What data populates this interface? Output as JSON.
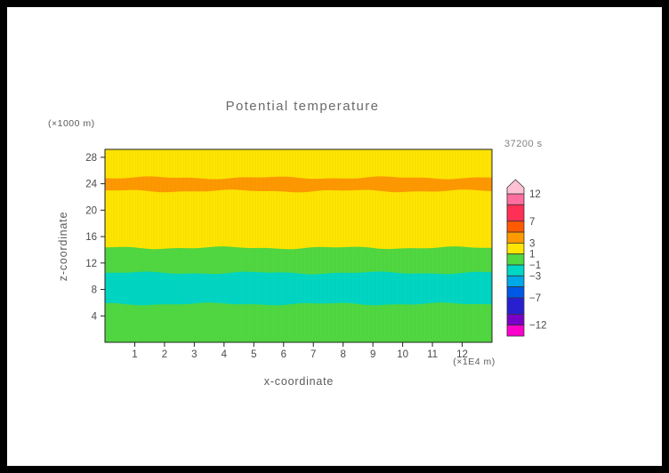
{
  "window": {
    "background": "#000000",
    "page_background": "#ffffff"
  },
  "chart_data": {
    "type": "filled-contour",
    "title": "Potential temperature",
    "time_label": "37200 s",
    "x_axis": {
      "label": "x-coordinate",
      "unit": "(×1E4 m)",
      "range": [
        0,
        13
      ],
      "ticks": [
        1,
        2,
        3,
        4,
        5,
        6,
        7,
        8,
        9,
        10,
        11,
        12
      ]
    },
    "y_axis": {
      "label": "z-coordinate",
      "unit": "(×1000 m)",
      "range": [
        0,
        29.2
      ],
      "ticks": [
        4,
        8,
        12,
        16,
        20,
        24,
        28
      ]
    },
    "bands": [
      {
        "value_min": 1,
        "value_max": 3,
        "z_from": 24.9,
        "z_to": 29.2,
        "color": "#ffe600"
      },
      {
        "value_min": 3,
        "value_max": 5,
        "z_from": 22.9,
        "z_to": 24.9,
        "color": "#ff9900"
      },
      {
        "value_min": 1,
        "value_max": 3,
        "z_from": 14.3,
        "z_to": 22.9,
        "color": "#ffe600"
      },
      {
        "value_min": -1,
        "value_max": 1,
        "z_from": 10.5,
        "z_to": 14.3,
        "color": "#50d940"
      },
      {
        "value_min": -3,
        "value_max": -1,
        "z_from": 5.8,
        "z_to": 10.5,
        "color": "#00d7c4"
      },
      {
        "value_min": -1,
        "value_max": 1,
        "z_from": 0,
        "z_to": 5.8,
        "color": "#50d940"
      }
    ],
    "colorbar": {
      "range": [
        -14,
        12
      ],
      "over_color": "#ffc2d4",
      "segments": [
        {
          "from": 10,
          "to": 12,
          "color": "#ff6e9e"
        },
        {
          "from": 7,
          "to": 10,
          "color": "#ff2f55"
        },
        {
          "from": 5,
          "to": 7,
          "color": "#ff5a00"
        },
        {
          "from": 3,
          "to": 5,
          "color": "#ff9900"
        },
        {
          "from": 1,
          "to": 3,
          "color": "#ffe600"
        },
        {
          "from": -1,
          "to": 1,
          "color": "#50d940"
        },
        {
          "from": -3,
          "to": -1,
          "color": "#00d7c4"
        },
        {
          "from": -5,
          "to": -3,
          "color": "#00a8e8"
        },
        {
          "from": -7,
          "to": -5,
          "color": "#0058e8"
        },
        {
          "from": -10,
          "to": -7,
          "color": "#2820d0"
        },
        {
          "from": -12,
          "to": -10,
          "color": "#7a00c8"
        },
        {
          "from": -14,
          "to": -12,
          "color": "#ff00cc"
        }
      ],
      "labels": [
        {
          "value": 12,
          "text": "12"
        },
        {
          "value": 7,
          "text": "7"
        },
        {
          "value": 3,
          "text": "3"
        },
        {
          "value": 1,
          "text": "1"
        },
        {
          "value": -1,
          "text": "−1"
        },
        {
          "value": -3,
          "text": "−3"
        },
        {
          "value": -7,
          "text": "−7"
        },
        {
          "value": -12,
          "text": "−12"
        }
      ]
    }
  }
}
